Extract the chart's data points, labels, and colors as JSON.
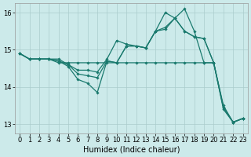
{
  "xlabel": "Humidex (Indice chaleur)",
  "background_color": "#cceaea",
  "grid_color": "#aacccc",
  "line_color": "#1a7a6e",
  "xlim": [
    -0.5,
    23.5
  ],
  "ylim": [
    12.75,
    16.25
  ],
  "yticks": [
    13,
    14,
    15,
    16
  ],
  "xticks": [
    0,
    1,
    2,
    3,
    4,
    5,
    6,
    7,
    8,
    9,
    10,
    11,
    12,
    13,
    14,
    15,
    16,
    17,
    18,
    19,
    20,
    21,
    22,
    23
  ],
  "series": [
    [
      14.9,
      14.75,
      14.75,
      14.75,
      14.75,
      14.6,
      14.45,
      14.45,
      14.4,
      14.75,
      15.25,
      15.15,
      15.1,
      15.05,
      15.5,
      15.55,
      15.85,
      15.5,
      15.35,
      15.3,
      14.65,
      13.5,
      13.05,
      13.15
    ],
    [
      14.9,
      14.75,
      14.75,
      14.75,
      14.7,
      14.6,
      14.35,
      14.3,
      14.25,
      14.7,
      14.65,
      15.1,
      15.1,
      15.05,
      15.5,
      16.0,
      15.85,
      16.1,
      15.5,
      14.65,
      14.65,
      13.4,
      13.05,
      13.15
    ],
    [
      14.9,
      14.75,
      14.75,
      14.75,
      14.7,
      14.55,
      14.2,
      14.1,
      13.85,
      14.7,
      14.65,
      15.1,
      15.1,
      15.05,
      15.5,
      15.6,
      15.85,
      15.5,
      15.35,
      15.3,
      14.65,
      13.45,
      13.05,
      13.15
    ],
    [
      14.9,
      14.75,
      14.75,
      14.75,
      14.65,
      14.65,
      14.65,
      14.65,
      14.65,
      14.65,
      14.65,
      14.65,
      14.65,
      14.65,
      14.65,
      14.65,
      14.65,
      14.65,
      14.65,
      14.65,
      14.65,
      13.45,
      13.05,
      13.15
    ]
  ]
}
